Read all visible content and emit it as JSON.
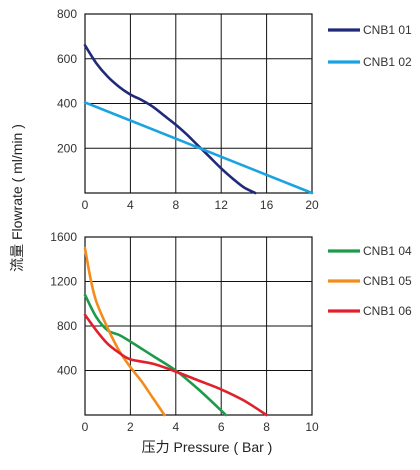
{
  "labels": {
    "ylabel": "流量 Flowrate ( ml/min )",
    "xlabel": "压力 Pressure ( Bar )"
  },
  "chart_data": [
    {
      "type": "line",
      "xlabel": "压力 Pressure ( Bar )",
      "ylabel": "流量 Flowrate ( ml/min )",
      "xlim": [
        0,
        20
      ],
      "ylim": [
        0,
        800
      ],
      "xticks": [
        0,
        4,
        8,
        12,
        16,
        20
      ],
      "yticks": [
        200,
        400,
        600,
        800
      ],
      "grid": true,
      "legend_position": "right",
      "series": [
        {
          "name": "CNB101",
          "legend_label": "CNB1 01",
          "color": "#1f2a7a",
          "x": [
            0,
            1,
            2,
            3,
            4,
            5,
            6,
            7,
            8,
            9,
            10,
            11,
            12,
            13,
            14,
            15
          ],
          "y": [
            660,
            580,
            520,
            475,
            440,
            415,
            385,
            345,
            305,
            260,
            210,
            160,
            110,
            65,
            25,
            0
          ]
        },
        {
          "name": "CNB102",
          "legend_label": "CNB1 02",
          "color": "#1aa3e0",
          "x": [
            0,
            20
          ],
          "y": [
            405,
            0
          ]
        }
      ]
    },
    {
      "type": "line",
      "xlabel": "压力 Pressure ( Bar )",
      "ylabel": "流量 Flowrate ( ml/min )",
      "xlim": [
        0,
        10
      ],
      "ylim": [
        0,
        1600
      ],
      "xticks": [
        0,
        2,
        4,
        6,
        8,
        10
      ],
      "yticks": [
        400,
        800,
        1200,
        1600
      ],
      "grid": true,
      "legend_position": "right",
      "series": [
        {
          "name": "CNB104",
          "legend_label": "CNB1 04",
          "color": "#1d9a4a",
          "x": [
            0,
            0.5,
            1,
            1.5,
            2,
            3,
            4,
            5,
            6,
            6.2
          ],
          "y": [
            1080,
            880,
            760,
            720,
            660,
            530,
            400,
            230,
            40,
            0
          ]
        },
        {
          "name": "CNB105",
          "legend_label": "CNB1 05",
          "color": "#f28c1a",
          "x": [
            0,
            0.25,
            0.5,
            1,
            1.5,
            2,
            2.5,
            3,
            3.5
          ],
          "y": [
            1500,
            1220,
            1020,
            780,
            580,
            430,
            300,
            150,
            0
          ]
        },
        {
          "name": "CNB106",
          "legend_label": "CNB1 06",
          "color": "#e0202a",
          "x": [
            0,
            0.5,
            1,
            1.5,
            2,
            3,
            4,
            5,
            6,
            7,
            8
          ],
          "y": [
            900,
            760,
            640,
            560,
            500,
            460,
            390,
            310,
            230,
            130,
            0
          ]
        }
      ]
    }
  ]
}
